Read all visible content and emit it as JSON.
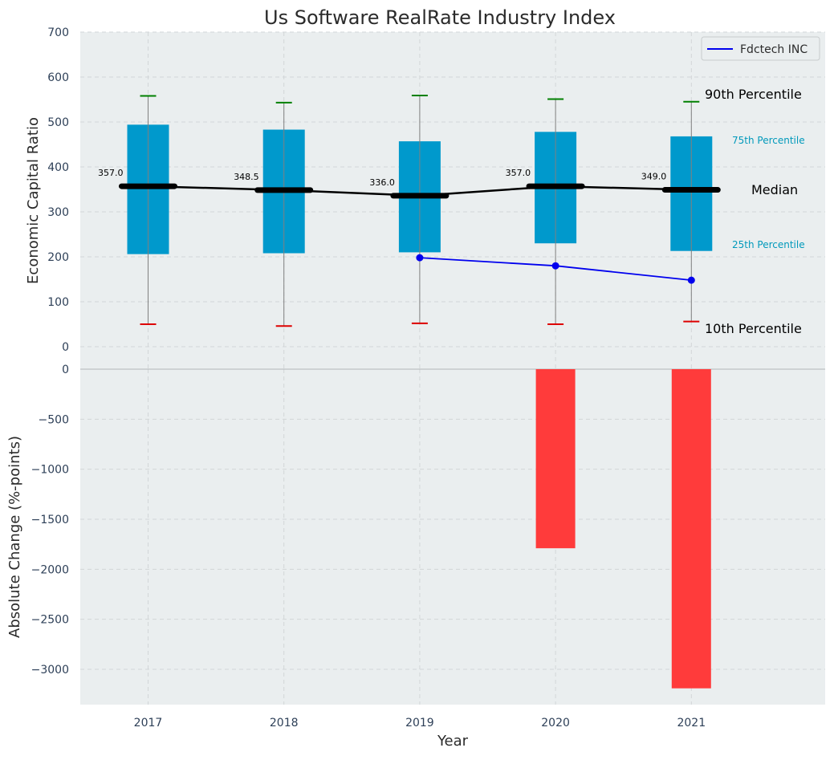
{
  "chart_data": [
    {
      "type": "box",
      "title": "Us Software RealRate Industry Index",
      "ylabel": "Economic Capital Ratio",
      "xlabel": "",
      "ylim": [
        0,
        700
      ],
      "yticks": [
        0,
        100,
        200,
        300,
        400,
        500,
        600,
        700
      ],
      "grid": true,
      "legend_position": "top-right",
      "categories": [
        "2017",
        "2018",
        "2019",
        "2020",
        "2021"
      ],
      "p10": [
        50,
        46,
        52,
        50,
        56
      ],
      "p25": [
        206,
        208,
        210,
        230,
        213
      ],
      "median": [
        357.0,
        348.5,
        336.0,
        357.0,
        349.0
      ],
      "p75": [
        494,
        483,
        457,
        478,
        468
      ],
      "p90": [
        558,
        543,
        559,
        551,
        545
      ],
      "median_labels": [
        "357.0",
        "348.5",
        "336.0",
        "357.0",
        "349.0"
      ],
      "series": [
        {
          "name": "Fdctech INC",
          "categories": [
            "2019",
            "2020",
            "2021"
          ],
          "values": [
            198,
            180,
            148
          ],
          "color": "#0000ee"
        }
      ],
      "annotations": {
        "p90": "90th Percentile",
        "p75": "75th Percentile",
        "median": "Median",
        "p25": "25th Percentile",
        "p10": "10th Percentile"
      },
      "colors": {
        "box": "#0099cc",
        "median": "#000000",
        "p90_cap": "#008000",
        "p10_cap": "#dd0000",
        "whisker": "#808080",
        "percentile_label": "#0099bb",
        "background": "#eaeeef"
      }
    },
    {
      "type": "bar",
      "ylabel": "Absolute Change (%-points)",
      "xlabel": "Year",
      "ylim": [
        -3350,
        0
      ],
      "yticks": [
        0,
        -500,
        -1000,
        -1500,
        -2000,
        -2500,
        -3000
      ],
      "ytick_labels": [
        "0",
        "−500",
        "−1000",
        "−1500",
        "−2000",
        "−2500",
        "−3000"
      ],
      "grid": true,
      "categories": [
        "2017",
        "2018",
        "2019",
        "2020",
        "2021"
      ],
      "values": [
        null,
        null,
        null,
        -1790,
        -3190
      ],
      "colors": {
        "bar": "#ff3b3b",
        "background": "#eaeeef"
      }
    }
  ]
}
